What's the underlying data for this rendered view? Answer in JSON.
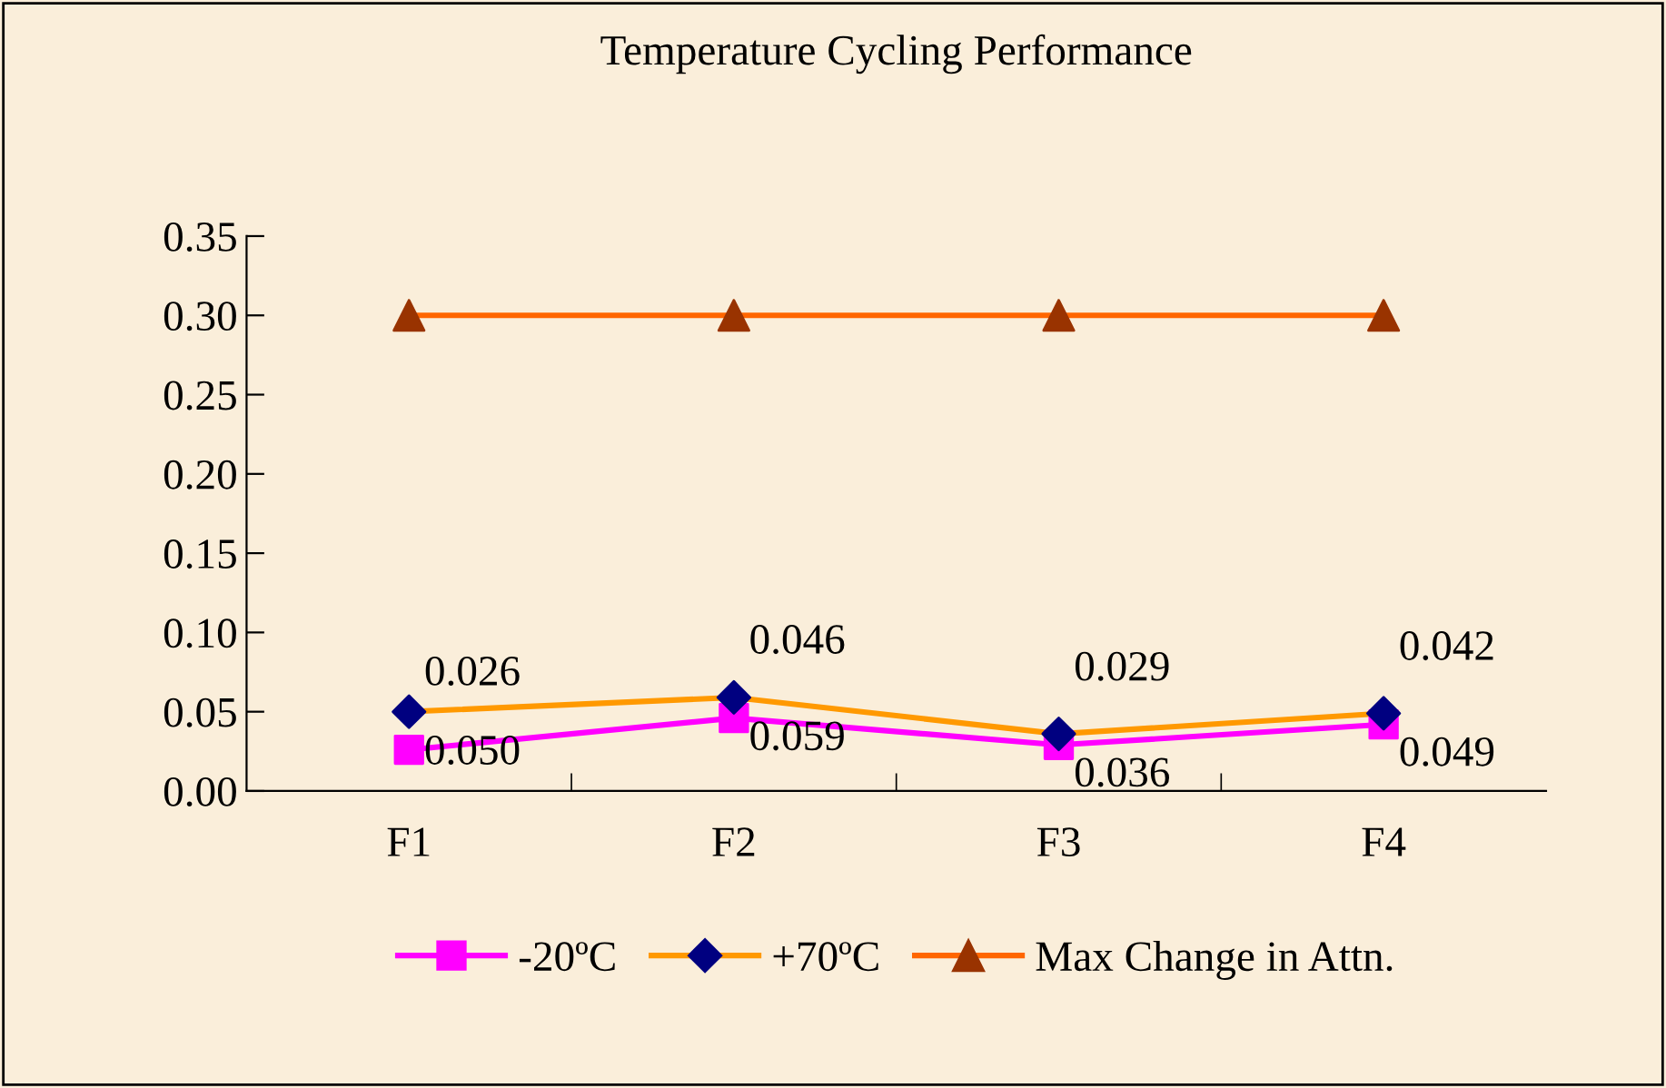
{
  "chart_data": {
    "type": "line",
    "title": "Temperature Cycling Performance",
    "categories": [
      "F1",
      "F2",
      "F3",
      "F4"
    ],
    "series": [
      {
        "name": "-20ºC",
        "color": "#ff00ff",
        "colors": [
          "#ff00ff",
          "#ff00ff",
          "#ff00ff",
          "#ff00ff"
        ],
        "marker": "square",
        "values": [
          0.026,
          0.046,
          0.029,
          0.042
        ],
        "value_labels": [
          "0.026",
          "0.046",
          "0.029",
          "0.042"
        ]
      },
      {
        "name": "+70ºC",
        "color": "#ff9900",
        "colors": [
          "#000080",
          "#000080",
          "#000080",
          "#000080"
        ],
        "marker": "diamond",
        "values": [
          0.05,
          0.059,
          0.036,
          0.049
        ],
        "value_labels": [
          "0.050",
          "0.059",
          "0.036",
          "0.049"
        ]
      },
      {
        "name": "Max Change in Attn.",
        "color": "#ff6600",
        "colors": [
          "#993300",
          "#993300",
          "#993300",
          "#993300"
        ],
        "marker": "triangle",
        "values": [
          0.3,
          0.3,
          0.3,
          0.3
        ]
      }
    ],
    "ylim": [
      0,
      0.35
    ],
    "yticks": [
      {
        "value": 0,
        "label": "0.00"
      },
      {
        "value": 0.05,
        "label": "0.05"
      },
      {
        "value": 0.1,
        "label": "0.10"
      },
      {
        "value": 0.15,
        "label": "0.15"
      },
      {
        "value": 0.2,
        "label": "0.20"
      },
      {
        "value": 0.25,
        "label": "0.25"
      },
      {
        "value": 0.3,
        "label": "0.30"
      },
      {
        "value": 0.35,
        "label": "0.35"
      }
    ],
    "legend": "bottom",
    "line_style": "solid"
  }
}
